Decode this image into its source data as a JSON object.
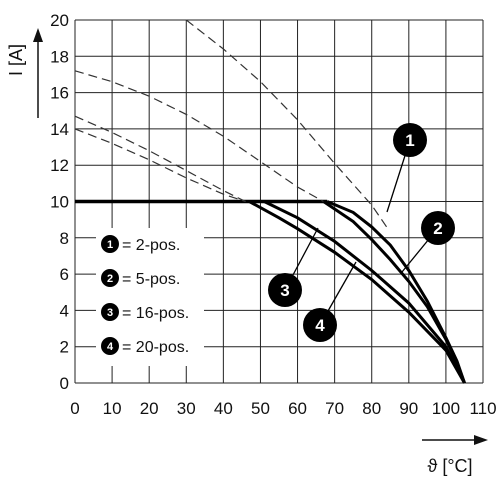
{
  "chart_data": {
    "type": "line",
    "xlabel": "ϑ [°C]",
    "ylabel": "I [A]",
    "xlim": [
      0,
      110
    ],
    "ylim": [
      0,
      20
    ],
    "x_ticks": [
      "0",
      "10",
      "20",
      "30",
      "40",
      "50",
      "60",
      "70",
      "80",
      "90",
      "100",
      "110"
    ],
    "y_ticks": [
      "0",
      "2",
      "4",
      "6",
      "8",
      "10",
      "12",
      "14",
      "16",
      "18",
      "20"
    ],
    "grid": true,
    "max_current": 10,
    "series": [
      {
        "marker": "1",
        "name": "= 2-pos.",
        "dashed_x": [
          30,
          40,
          50,
          60,
          70,
          80,
          84
        ],
        "dashed_y": [
          20,
          18.4,
          16.6,
          14.5,
          12.1,
          9.8,
          8.6
        ],
        "solid_x": [
          68,
          75,
          80,
          85,
          90,
          95,
          100,
          103,
          105
        ],
        "solid_y": [
          10,
          9.4,
          8.6,
          7.6,
          6.2,
          4.5,
          2.5,
          1.2,
          0
        ]
      },
      {
        "marker": "2",
        "name": "= 5-pos.",
        "dashed_x": [
          0,
          10,
          20,
          30,
          40,
          50,
          60,
          67
        ],
        "dashed_y": [
          17.2,
          16.6,
          15.8,
          14.8,
          13.6,
          12.2,
          10.8,
          10
        ],
        "solid_x": [
          67,
          75,
          80,
          85,
          90,
          95,
          100,
          103,
          105
        ],
        "solid_y": [
          10,
          8.9,
          7.9,
          6.8,
          5.6,
          4.2,
          2.4,
          1.1,
          0
        ]
      },
      {
        "marker": "3",
        "name": "= 16-pos.",
        "dashed_x": [
          0,
          10,
          20,
          30,
          40,
          46
        ],
        "dashed_y": [
          14.7,
          13.8,
          12.8,
          11.7,
          10.6,
          10
        ],
        "solid_x": [
          51,
          60,
          70,
          80,
          90,
          100,
          105
        ],
        "solid_y": [
          10,
          9.1,
          7.8,
          6.2,
          4.4,
          2.0,
          0
        ]
      },
      {
        "marker": "4",
        "name": "= 20-pos.",
        "dashed_x": [
          0,
          10,
          20,
          30,
          40,
          46
        ],
        "dashed_y": [
          14,
          13.2,
          12.3,
          11.3,
          10.4,
          10
        ],
        "solid_x": [
          47,
          55,
          60,
          70,
          80,
          90,
          100,
          105
        ],
        "solid_y": [
          10,
          9.1,
          8.5,
          7.2,
          5.7,
          3.9,
          1.8,
          0
        ]
      }
    ],
    "legend": {
      "placement": "bottom-left"
    }
  }
}
